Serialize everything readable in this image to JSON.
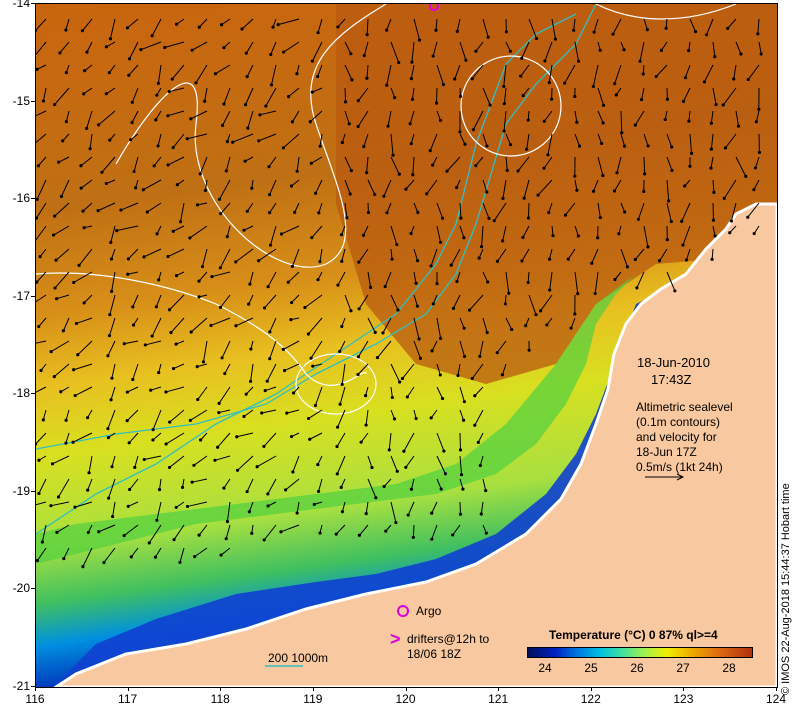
{
  "axes": {
    "lon_ticks": [
      "116",
      "117",
      "118",
      "119",
      "120",
      "121",
      "122",
      "123",
      "124"
    ],
    "lat_ticks": [
      "-14",
      "-15",
      "-16",
      "-17",
      "-18",
      "-19",
      "-20",
      "-21"
    ]
  },
  "map_extent": {
    "lon": [
      116,
      124
    ],
    "lat": [
      -21,
      -14
    ]
  },
  "legend": {
    "date": "18-Jun-2010",
    "time": "17:43Z",
    "alt_line1": "Altimetric sealevel",
    "alt_line2": "(0.1m contours)",
    "alt_line3": "and velocity for",
    "alt_line4": "18-Jun 17Z",
    "alt_line5": "0.5m/s (1kt 24h)",
    "argo_label": "Argo",
    "drifter_line1": "drifters@12h to",
    "drifter_line2": "18/06 18Z",
    "isobath_label": "200  1000m"
  },
  "colorbar": {
    "title": "Temperature (°C) 0 87% ql>=4",
    "ticks": [
      "24",
      "25",
      "26",
      "27",
      "28"
    ]
  },
  "credit": "© IMOS 22-Aug-2018 15:44:37 Hobart time",
  "colors": {
    "land": "#f8c8a0",
    "warm": "#c96a10",
    "cool_green": "#40d040",
    "cold_blue": "#0018b0",
    "bathymetry": "#30c0c0",
    "argo": "#e000e0",
    "contour": "#ffffff"
  }
}
